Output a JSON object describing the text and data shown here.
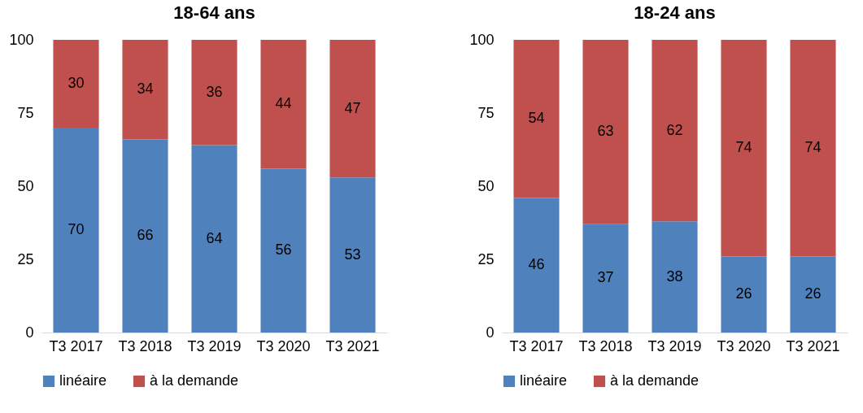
{
  "chart_data": [
    {
      "type": "bar",
      "title": "18-64 ans",
      "stacked": true,
      "categories": [
        "T3 2017",
        "T3 2018",
        "T3 2019",
        "T3 2020",
        "T3 2021"
      ],
      "series": [
        {
          "name": "linéaire",
          "color": "#4f81bd",
          "values": [
            70,
            66,
            64,
            56,
            53
          ]
        },
        {
          "name": "à la demande",
          "color": "#c0504d",
          "values": [
            30,
            34,
            36,
            44,
            47
          ]
        }
      ],
      "ylim": [
        0,
        100
      ],
      "yticks": [
        0,
        25,
        50,
        75,
        100
      ],
      "grid": false,
      "legend": "bottom",
      "data_labels": true
    },
    {
      "type": "bar",
      "title": "18-24 ans",
      "stacked": true,
      "categories": [
        "T3 2017",
        "T3 2018",
        "T3 2019",
        "T3 2020",
        "T3 2021"
      ],
      "series": [
        {
          "name": "linéaire",
          "color": "#4f81bd",
          "values": [
            46,
            37,
            38,
            26,
            26
          ]
        },
        {
          "name": "à la demande",
          "color": "#c0504d",
          "values": [
            54,
            63,
            62,
            74,
            74
          ]
        }
      ],
      "ylim": [
        0,
        100
      ],
      "yticks": [
        0,
        25,
        50,
        75,
        100
      ],
      "grid": false,
      "legend": "bottom",
      "data_labels": true
    }
  ]
}
